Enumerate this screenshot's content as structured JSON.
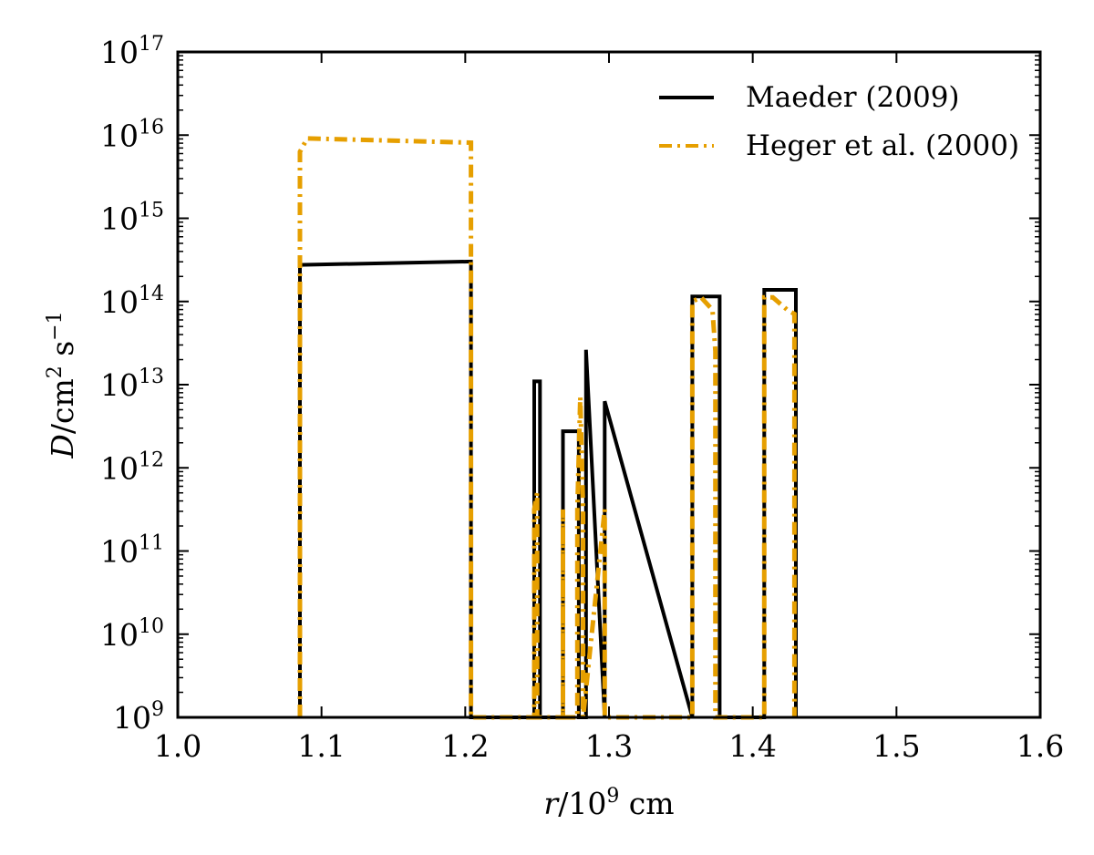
{
  "chart_data": {
    "type": "line",
    "title": "",
    "xlabel": {
      "var": "r",
      "mid": "/10",
      "sup": "9",
      "unit": " cm"
    },
    "ylabel": {
      "var": "D",
      "mid": "/cm",
      "sup1": "2",
      "s": " s",
      "sup2": "−1"
    },
    "xlim": [
      1.0,
      1.6
    ],
    "ylim_log10": [
      9,
      17
    ],
    "x_ticks": [
      1.0,
      1.1,
      1.2,
      1.3,
      1.4,
      1.5,
      1.6
    ],
    "x_tick_labels": [
      "1.0",
      "1.1",
      "1.2",
      "1.3",
      "1.4",
      "1.5",
      "1.6"
    ],
    "y_tick_exponents": [
      9,
      10,
      11,
      12,
      13,
      14,
      15,
      16,
      17
    ],
    "y_tick_base": "10",
    "y_tick_sups": [
      "9",
      "10",
      "11",
      "12",
      "13",
      "14",
      "15",
      "16",
      "17"
    ],
    "legend_position": "upper-right",
    "series": [
      {
        "name": "Maeder (2009)",
        "color": "#000000",
        "style": "solid",
        "x": [
          1.085,
          1.085,
          1.204,
          1.204,
          1.248,
          1.248,
          1.252,
          1.252,
          1.268,
          1.268,
          1.279,
          1.279,
          1.284,
          1.284,
          1.297,
          1.297,
          1.358,
          1.358,
          1.377,
          1.377,
          1.408,
          1.408,
          1.43,
          1.43
        ],
        "y_log10": [
          9,
          14.44,
          14.48,
          9,
          9,
          13.04,
          13.04,
          9,
          9,
          12.44,
          12.44,
          9,
          9,
          13.42,
          9,
          12.8,
          9,
          14.06,
          14.06,
          9,
          9,
          14.14,
          14.14,
          9
        ]
      },
      {
        "name": "Heger et al. (2000)",
        "color": "#e69f00",
        "style": "dashdot",
        "x": [
          1.085,
          1.085,
          1.09,
          1.204,
          1.204,
          1.248,
          1.248,
          1.25,
          1.25,
          1.268,
          1.268,
          1.268,
          1.278,
          1.278,
          1.28,
          1.282,
          1.282,
          1.297,
          1.297,
          1.358,
          1.358,
          1.364,
          1.372,
          1.374,
          1.374,
          1.408,
          1.408,
          1.414,
          1.424,
          1.429,
          1.429
        ],
        "y_log10": [
          9,
          15.8,
          15.96,
          15.91,
          9,
          9,
          11.5,
          11.7,
          9,
          9,
          11.5,
          9,
          9,
          11.5,
          12.85,
          11.5,
          9,
          11.5,
          9,
          9,
          14.0,
          14.05,
          13.9,
          13.4,
          9,
          9,
          14.05,
          14.05,
          13.9,
          13.85,
          9
        ]
      }
    ]
  }
}
